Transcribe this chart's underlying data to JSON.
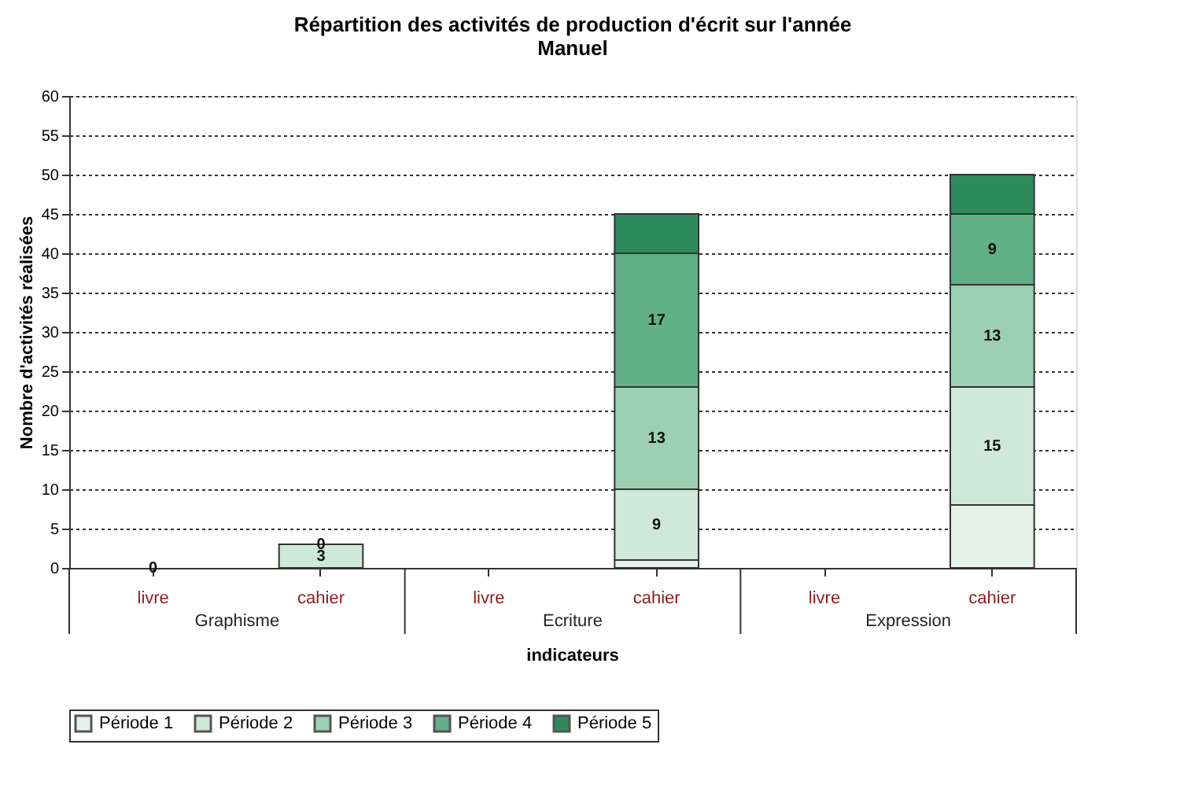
{
  "chart_data": {
    "type": "bar",
    "title": [
      "Répartition des activités de production d'écrit sur l'année",
      "Manuel"
    ],
    "categories": [
      "livre",
      "cahier",
      "livre",
      "cahier",
      "livre",
      "cahier"
    ],
    "annotations": [
      "Graphisme",
      "Ecriture",
      "Expression"
    ],
    "xlabel": "indicateurs",
    "ylabel": "Nombre d'activités réalisées",
    "stacked": true,
    "ylim": [
      0,
      60
    ],
    "yticks": [
      0,
      5,
      10,
      15,
      20,
      25,
      30,
      35,
      40,
      45,
      50,
      55,
      60
    ],
    "grid": "y",
    "legend": "bottom",
    "series": [
      {
        "name": "Période 1",
        "color": "#e4f2e9",
        "values": [
          0,
          0,
          null,
          1,
          null,
          8
        ],
        "value_labels": [
          "0",
          null,
          null,
          null,
          null,
          null
        ]
      },
      {
        "name": "Période 2",
        "color": "#cfe9d9",
        "values": [
          0,
          3,
          null,
          9,
          null,
          15
        ],
        "value_labels": [
          null,
          "3",
          null,
          "9",
          null,
          "15"
        ]
      },
      {
        "name": "Période 3",
        "color": "#9dd0b2",
        "values": [
          0,
          0,
          null,
          13,
          null,
          13
        ],
        "value_labels": [
          null,
          "0",
          null,
          "13",
          null,
          "13"
        ]
      },
      {
        "name": "Période 4",
        "color": "#61b086",
        "values": [
          0,
          0,
          null,
          17,
          null,
          9
        ],
        "value_labels": [
          null,
          null,
          null,
          "17",
          null,
          "9"
        ]
      },
      {
        "name": "Période 5",
        "color": "#2e8b5c",
        "values": [
          0,
          0,
          null,
          5,
          null,
          5
        ],
        "value_labels": [
          null,
          null,
          null,
          null,
          null,
          null
        ]
      }
    ]
  }
}
